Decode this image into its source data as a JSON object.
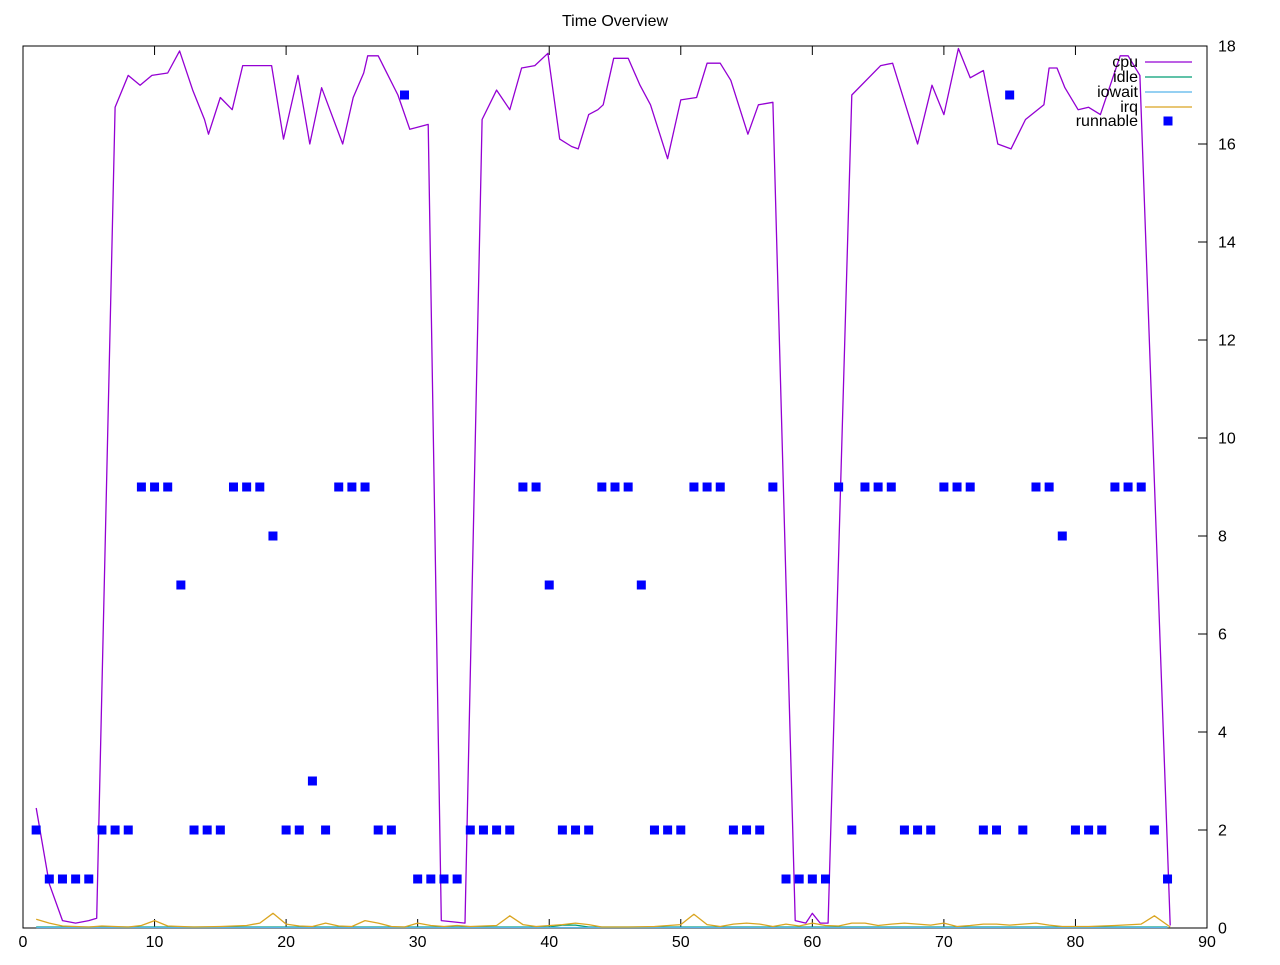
{
  "chart_data": {
    "type": "line+scatter",
    "title": "Time Overview",
    "xlabel": "",
    "ylabel": "",
    "x_range": [
      0,
      90
    ],
    "y_range": [
      0,
      18
    ],
    "x_ticks": [
      0,
      10,
      20,
      30,
      40,
      50,
      60,
      70,
      80,
      90
    ],
    "y_ticks": [
      0,
      2,
      4,
      6,
      8,
      10,
      12,
      14,
      16,
      18
    ],
    "y_labels_side": "right",
    "grid": false,
    "background": "#ffffff",
    "border_color": "#000000",
    "legend": {
      "position": "top-right",
      "order": [
        "cpu",
        "idle",
        "iowait",
        "irq",
        "runnable"
      ]
    },
    "series": [
      {
        "name": "cpu",
        "type": "line",
        "color": "#9400d3",
        "points": [
          [
            1,
            2.45
          ],
          [
            2,
            0.9
          ],
          [
            3,
            0.15
          ],
          [
            4,
            0.1
          ],
          [
            5,
            0.15
          ],
          [
            5.6,
            0.2
          ],
          [
            7,
            16.75
          ],
          [
            8,
            17.4
          ],
          [
            8.9,
            17.2
          ],
          [
            9.8,
            17.4
          ],
          [
            11,
            17.45
          ],
          [
            11.9,
            17.9
          ],
          [
            12.9,
            17.1
          ],
          [
            13.8,
            16.5
          ],
          [
            14.1,
            16.2
          ],
          [
            15,
            16.95
          ],
          [
            15.9,
            16.7
          ],
          [
            16.7,
            17.6
          ],
          [
            18.9,
            17.6
          ],
          [
            19.8,
            16.1
          ],
          [
            20.9,
            17.4
          ],
          [
            21.8,
            16
          ],
          [
            22.7,
            17.15
          ],
          [
            24.3,
            16
          ],
          [
            25.1,
            16.95
          ],
          [
            25.9,
            17.45
          ],
          [
            26.2,
            17.8
          ],
          [
            27,
            17.8
          ],
          [
            28.5,
            17
          ],
          [
            29.4,
            16.3
          ],
          [
            30.8,
            16.4
          ],
          [
            31.8,
            0.15
          ],
          [
            33.6,
            0.1
          ],
          [
            34.9,
            16.5
          ],
          [
            36,
            17.1
          ],
          [
            37,
            16.7
          ],
          [
            37.9,
            17.55
          ],
          [
            38.9,
            17.6
          ],
          [
            39.9,
            17.85
          ],
          [
            40.8,
            16.1
          ],
          [
            41.7,
            15.95
          ],
          [
            42.2,
            15.9
          ],
          [
            43,
            16.6
          ],
          [
            43.7,
            16.7
          ],
          [
            44.1,
            16.8
          ],
          [
            44.9,
            17.75
          ],
          [
            46,
            17.75
          ],
          [
            46.9,
            17.2
          ],
          [
            47.7,
            16.8
          ],
          [
            49,
            15.7
          ],
          [
            50,
            16.9
          ],
          [
            51.2,
            16.95
          ],
          [
            52,
            17.65
          ],
          [
            53,
            17.65
          ],
          [
            53.8,
            17.3
          ],
          [
            55.1,
            16.2
          ],
          [
            55.9,
            16.8
          ],
          [
            57,
            16.85
          ],
          [
            58.7,
            0.15
          ],
          [
            59.5,
            0.1
          ],
          [
            60,
            0.3
          ],
          [
            60.6,
            0.1
          ],
          [
            61.2,
            0.1
          ],
          [
            63,
            17
          ],
          [
            65.2,
            17.6
          ],
          [
            66.1,
            17.65
          ],
          [
            68,
            16
          ],
          [
            69.1,
            17.2
          ],
          [
            70,
            16.6
          ],
          [
            71.1,
            17.95
          ],
          [
            72,
            17.35
          ],
          [
            73,
            17.5
          ],
          [
            74.1,
            16
          ],
          [
            75.1,
            15.9
          ],
          [
            76.2,
            16.5
          ],
          [
            77.6,
            16.8
          ],
          [
            78,
            17.55
          ],
          [
            78.6,
            17.55
          ],
          [
            79.2,
            17.15
          ],
          [
            80.2,
            16.7
          ],
          [
            81,
            16.75
          ],
          [
            81.9,
            16.6
          ],
          [
            83.4,
            17.8
          ],
          [
            84,
            17.8
          ],
          [
            84.9,
            17.4
          ],
          [
            87.2,
            0.05
          ]
        ]
      },
      {
        "name": "idle",
        "type": "line",
        "color": "#009e73",
        "points": [
          [
            1,
            0.02
          ],
          [
            40,
            0.02
          ],
          [
            41,
            0.06
          ],
          [
            42,
            0.06
          ],
          [
            43,
            0.02
          ],
          [
            87,
            0.02
          ]
        ]
      },
      {
        "name": "iowait",
        "type": "line",
        "color": "#56b4e9",
        "points": [
          [
            1,
            0.01
          ],
          [
            87,
            0.01
          ]
        ]
      },
      {
        "name": "irq",
        "type": "line",
        "color": "#daa520",
        "points": [
          [
            1,
            0.18
          ],
          [
            2,
            0.1
          ],
          [
            3,
            0.04
          ],
          [
            5,
            0.02
          ],
          [
            6,
            0.04
          ],
          [
            8,
            0.02
          ],
          [
            9,
            0.05
          ],
          [
            10,
            0.15
          ],
          [
            11,
            0.04
          ],
          [
            13,
            0.02
          ],
          [
            15,
            0.03
          ],
          [
            17,
            0.05
          ],
          [
            18,
            0.1
          ],
          [
            19,
            0.3
          ],
          [
            20,
            0.08
          ],
          [
            21,
            0.04
          ],
          [
            22,
            0.03
          ],
          [
            23,
            0.1
          ],
          [
            24,
            0.04
          ],
          [
            25,
            0.03
          ],
          [
            26,
            0.15
          ],
          [
            27,
            0.1
          ],
          [
            28,
            0.03
          ],
          [
            29,
            0.02
          ],
          [
            30,
            0.1
          ],
          [
            31,
            0.05
          ],
          [
            32,
            0.03
          ],
          [
            33,
            0.05
          ],
          [
            34,
            0.03
          ],
          [
            36,
            0.05
          ],
          [
            37,
            0.25
          ],
          [
            38,
            0.07
          ],
          [
            39,
            0.03
          ],
          [
            41,
            0.07
          ],
          [
            42,
            0.1
          ],
          [
            43,
            0.07
          ],
          [
            44,
            0.02
          ],
          [
            46,
            0.02
          ],
          [
            48,
            0.03
          ],
          [
            50,
            0.07
          ],
          [
            51,
            0.28
          ],
          [
            52,
            0.07
          ],
          [
            53,
            0.03
          ],
          [
            54,
            0.08
          ],
          [
            55,
            0.1
          ],
          [
            56,
            0.08
          ],
          [
            57,
            0.03
          ],
          [
            58,
            0.08
          ],
          [
            59,
            0.04
          ],
          [
            60,
            0.1
          ],
          [
            61,
            0.05
          ],
          [
            62,
            0.04
          ],
          [
            63,
            0.1
          ],
          [
            64,
            0.1
          ],
          [
            65,
            0.05
          ],
          [
            66,
            0.08
          ],
          [
            67,
            0.1
          ],
          [
            68,
            0.08
          ],
          [
            69,
            0.06
          ],
          [
            70,
            0.1
          ],
          [
            71,
            0.03
          ],
          [
            72,
            0.05
          ],
          [
            73,
            0.08
          ],
          [
            74,
            0.08
          ],
          [
            75,
            0.06
          ],
          [
            76,
            0.08
          ],
          [
            77,
            0.1
          ],
          [
            78,
            0.06
          ],
          [
            79,
            0.03
          ],
          [
            81,
            0.03
          ],
          [
            83,
            0.05
          ],
          [
            85,
            0.08
          ],
          [
            86,
            0.25
          ],
          [
            87.2,
            0.02
          ]
        ]
      },
      {
        "name": "runnable",
        "type": "points",
        "color": "#0000ff",
        "points": [
          [
            1,
            2
          ],
          [
            2,
            1
          ],
          [
            3,
            1
          ],
          [
            4,
            1
          ],
          [
            5,
            1
          ],
          [
            6,
            2
          ],
          [
            7,
            2
          ],
          [
            8,
            2
          ],
          [
            9,
            9
          ],
          [
            10,
            9
          ],
          [
            11,
            9
          ],
          [
            12,
            7
          ],
          [
            13,
            2
          ],
          [
            14,
            2
          ],
          [
            15,
            2
          ],
          [
            16,
            9
          ],
          [
            17,
            9
          ],
          [
            18,
            9
          ],
          [
            19,
            8
          ],
          [
            20,
            2
          ],
          [
            21,
            2
          ],
          [
            22,
            3
          ],
          [
            23,
            2
          ],
          [
            24,
            9
          ],
          [
            25,
            9
          ],
          [
            26,
            9
          ],
          [
            27,
            2
          ],
          [
            28,
            2
          ],
          [
            29,
            17
          ],
          [
            30,
            1
          ],
          [
            31,
            1
          ],
          [
            32,
            1
          ],
          [
            33,
            1
          ],
          [
            34,
            2
          ],
          [
            35,
            2
          ],
          [
            36,
            2
          ],
          [
            37,
            2
          ],
          [
            38,
            9
          ],
          [
            39,
            9
          ],
          [
            40,
            7
          ],
          [
            41,
            2
          ],
          [
            42,
            2
          ],
          [
            43,
            2
          ],
          [
            44,
            9
          ],
          [
            45,
            9
          ],
          [
            46,
            9
          ],
          [
            47,
            7
          ],
          [
            48,
            2
          ],
          [
            49,
            2
          ],
          [
            50,
            2
          ],
          [
            51,
            9
          ],
          [
            52,
            9
          ],
          [
            53,
            9
          ],
          [
            54,
            2
          ],
          [
            55,
            2
          ],
          [
            56,
            2
          ],
          [
            57,
            9
          ],
          [
            58,
            1
          ],
          [
            59,
            1
          ],
          [
            60,
            1
          ],
          [
            61,
            1
          ],
          [
            62,
            9
          ],
          [
            63,
            2
          ],
          [
            64,
            9
          ],
          [
            65,
            9
          ],
          [
            66,
            9
          ],
          [
            67,
            2
          ],
          [
            68,
            2
          ],
          [
            69,
            2
          ],
          [
            70,
            9
          ],
          [
            71,
            9
          ],
          [
            72,
            9
          ],
          [
            73,
            2
          ],
          [
            74,
            2
          ],
          [
            75,
            17
          ],
          [
            76,
            2
          ],
          [
            77,
            9
          ],
          [
            78,
            9
          ],
          [
            79,
            8
          ],
          [
            80,
            2
          ],
          [
            81,
            2
          ],
          [
            82,
            2
          ],
          [
            83,
            9
          ],
          [
            84,
            9
          ],
          [
            85,
            9
          ],
          [
            86,
            2
          ],
          [
            87,
            1
          ]
        ]
      }
    ]
  }
}
